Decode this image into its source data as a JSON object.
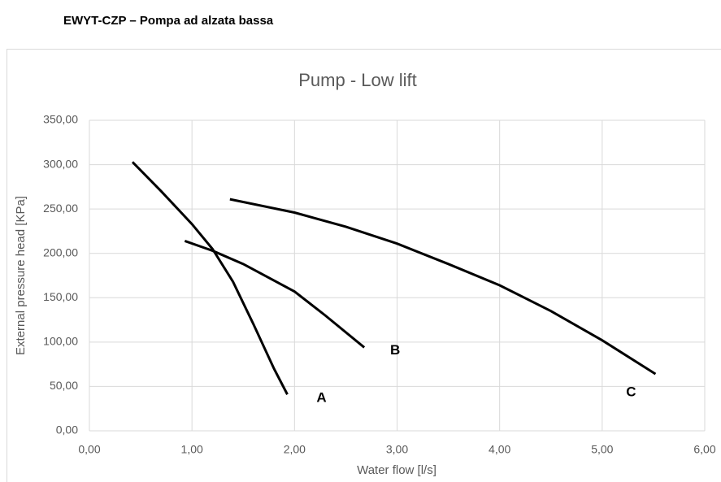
{
  "heading": "EWYT-CZP – Pompa ad alzata bassa",
  "chart_data": {
    "type": "line",
    "title": "Pump - Low lift",
    "x_label": "Water flow [l/s]",
    "y_label": "External pressure head [KPa]",
    "xlim": [
      0,
      6
    ],
    "ylim": [
      0,
      350
    ],
    "xticks": [
      {
        "value": 0,
        "label": "0,00"
      },
      {
        "value": 1,
        "label": "1,00"
      },
      {
        "value": 2,
        "label": "2,00"
      },
      {
        "value": 3,
        "label": "3,00"
      },
      {
        "value": 4,
        "label": "4,00"
      },
      {
        "value": 5,
        "label": "5,00"
      },
      {
        "value": 6,
        "label": "6,00"
      }
    ],
    "yticks": [
      {
        "value": 0,
        "label": "0,00"
      },
      {
        "value": 50,
        "label": "50,00"
      },
      {
        "value": 100,
        "label": "100,00"
      },
      {
        "value": 150,
        "label": "150,00"
      },
      {
        "value": 200,
        "label": "200,00"
      },
      {
        "value": 250,
        "label": "250,00"
      },
      {
        "value": 300,
        "label": "300,00"
      },
      {
        "value": 350,
        "label": "350,00"
      }
    ],
    "grid": true,
    "series": [
      {
        "name": "A",
        "color": "#000000",
        "x": [
          0.42,
          0.7,
          1.0,
          1.2,
          1.4,
          1.6,
          1.8,
          1.93
        ],
        "values": [
          303,
          270,
          233,
          205,
          168,
          120,
          70,
          41
        ]
      },
      {
        "name": "B",
        "color": "#000000",
        "x": [
          0.93,
          1.2,
          1.5,
          2.0,
          2.3,
          2.68
        ],
        "values": [
          214,
          203,
          188,
          157,
          130,
          94
        ]
      },
      {
        "name": "C",
        "color": "#000000",
        "x": [
          1.37,
          2.0,
          2.5,
          3.0,
          3.5,
          4.0,
          4.5,
          5.0,
          5.52
        ],
        "values": [
          261,
          246,
          230,
          211,
          188,
          164,
          135,
          102,
          64
        ]
      }
    ]
  }
}
